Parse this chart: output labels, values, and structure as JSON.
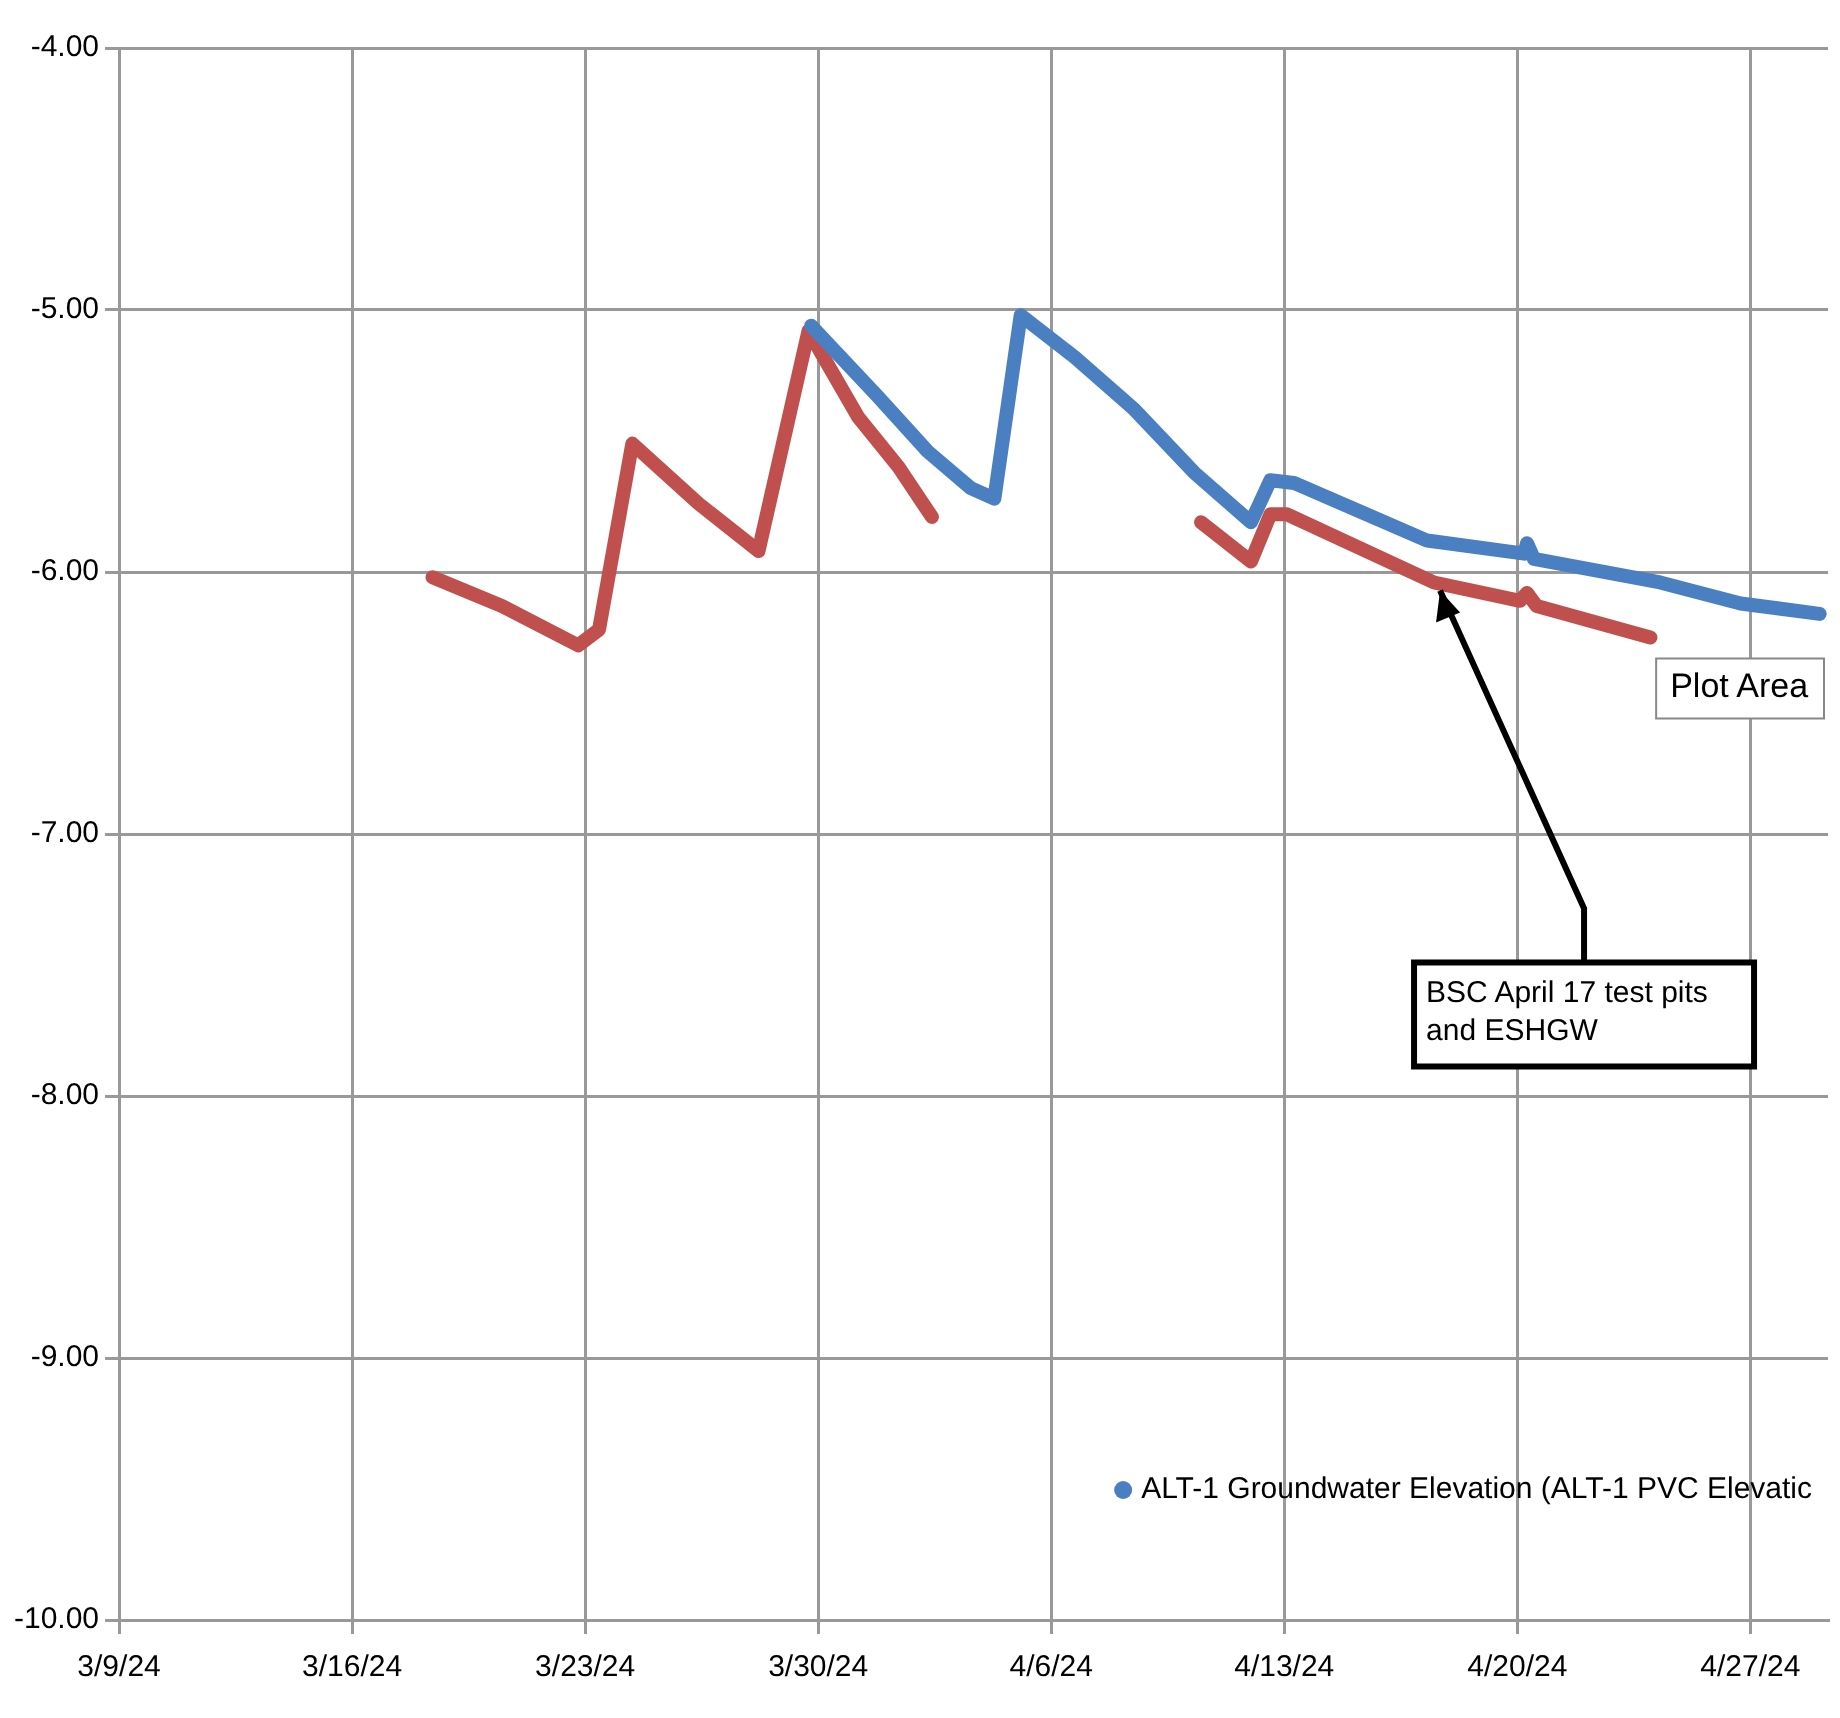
{
  "chart_data": {
    "type": "line",
    "series": [
      {
        "name": "ALT-1 Groundwater Elevation (ALT-1 PVC Elevatic",
        "color": "#4a7fc1",
        "x": [
          "--03-29T19:00",
          "--03-31T19:00",
          "--04-02T07:00",
          "--04-03T14:00",
          "--04-04T07:00",
          "--04-05T02:00",
          "--04-06T17:00",
          "--04-08T12:00",
          "--04-10T07:00",
          "--04-12T00:00",
          "--04-12T14:00",
          "--04-13T07:00",
          "--04-17T07:00",
          "--04-20T05:00",
          "--04-20T07:00",
          "--04-20T12:00",
          "--04-24T07:00",
          "--04-26T17:00",
          "--04-29T02:00"
        ],
        "values": [
          -5.06,
          -5.33,
          -5.54,
          -5.68,
          -5.72,
          -5.02,
          -5.18,
          -5.38,
          -5.62,
          -5.81,
          -5.65,
          -5.66,
          -5.88,
          -5.93,
          -5.89,
          -5.95,
          -6.04,
          -6.12,
          -6.16
        ]
      },
      {
        "color": "#c0504d",
        "x": [
          "--03-18T10:00",
          "--03-20T12:00",
          "--03-22T19:00",
          "--03-23T10:00",
          "--03-24T10:00",
          "--03-26T10:00",
          "--03-28T05:00",
          "--03-29T17:00",
          "--03-31T05:00",
          "--04-01T10:00",
          "--04-02T10:00",
          "--04-06T00:00",
          "--04-10T12:00",
          "--04-12T00:00",
          "--04-12T14:00",
          "--04-13T02:00",
          "--04-17T12:00",
          "--04-20T02:00",
          "--04-20T07:00",
          "--04-20T14:00",
          "--04-24T00:00"
        ],
        "values": [
          -6.02,
          -6.13,
          -6.28,
          -6.22,
          -5.51,
          -5.74,
          -5.92,
          -5.08,
          -5.41,
          -5.6,
          -5.79,
          null,
          -5.81,
          -5.96,
          -5.78,
          -5.78,
          -6.04,
          -6.11,
          -6.08,
          -6.13,
          -6.25
        ]
      }
    ],
    "xlim": [
      "--03-09",
      "--04-29T08:00"
    ],
    "xticks": [
      {
        "value": "--03-09",
        "label": "3/9/24"
      },
      {
        "value": "--03-16",
        "label": "3/16/24"
      },
      {
        "value": "--03-23",
        "label": "3/23/24"
      },
      {
        "value": "--03-30",
        "label": "3/30/24"
      },
      {
        "value": "--04-06",
        "label": "4/6/24"
      },
      {
        "value": "--04-13",
        "label": "4/13/24"
      },
      {
        "value": "--04-20",
        "label": "4/20/24"
      },
      {
        "value": "--04-27",
        "label": "4/27/24"
      }
    ],
    "ylim": [
      -10,
      -4
    ],
    "yticks": [
      {
        "value": -10,
        "label": "-10.00"
      },
      {
        "value": -9,
        "label": "-9.00"
      },
      {
        "value": -8,
        "label": "-8.00"
      },
      {
        "value": -7,
        "label": "-7.00"
      },
      {
        "value": -6,
        "label": "-6.00"
      },
      {
        "value": -5,
        "label": "-5.00"
      },
      {
        "value": -4,
        "label": "-4.00"
      }
    ],
    "grid": true,
    "legend": "bottom right",
    "line_style": "solid",
    "annotations": [
      {
        "text": "BSC April 17 test pits and ESHGW",
        "x": "--04-17T12:00",
        "y": -6.04
      },
      "Plot Area"
    ]
  }
}
